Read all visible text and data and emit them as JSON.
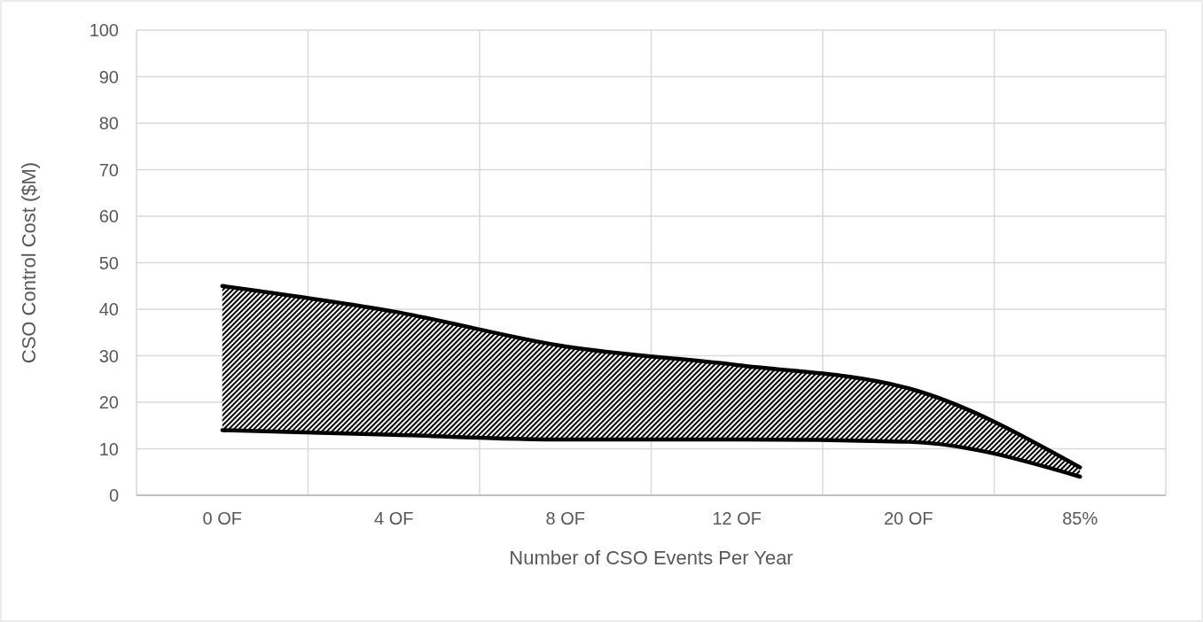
{
  "chart_data": {
    "type": "line",
    "xlabel": "Number of CSO Events Per Year",
    "ylabel": "CSO Control Cost ($M)",
    "categories": [
      "0 OF",
      "4 OF",
      "8 OF",
      "12 OF",
      "20 OF",
      "85%"
    ],
    "series": [
      {
        "color": "#000000",
        "values": [
          14,
          13,
          12,
          12,
          11.5,
          4
        ]
      },
      {
        "color": "#000000",
        "values": [
          45,
          39.5,
          32,
          28,
          23,
          6
        ],
        "lower": [
          14,
          13,
          12,
          12,
          11.5,
          4
        ],
        "upper": [
          45,
          39.5,
          32,
          28,
          23,
          6
        ]
      }
    ],
    "ylim": [
      0,
      100
    ],
    "yticks": [
      0,
      10,
      20,
      30,
      40,
      50,
      60,
      70,
      80,
      90,
      100
    ],
    "grid": true,
    "marker": "none",
    "line_style": "solid"
  }
}
